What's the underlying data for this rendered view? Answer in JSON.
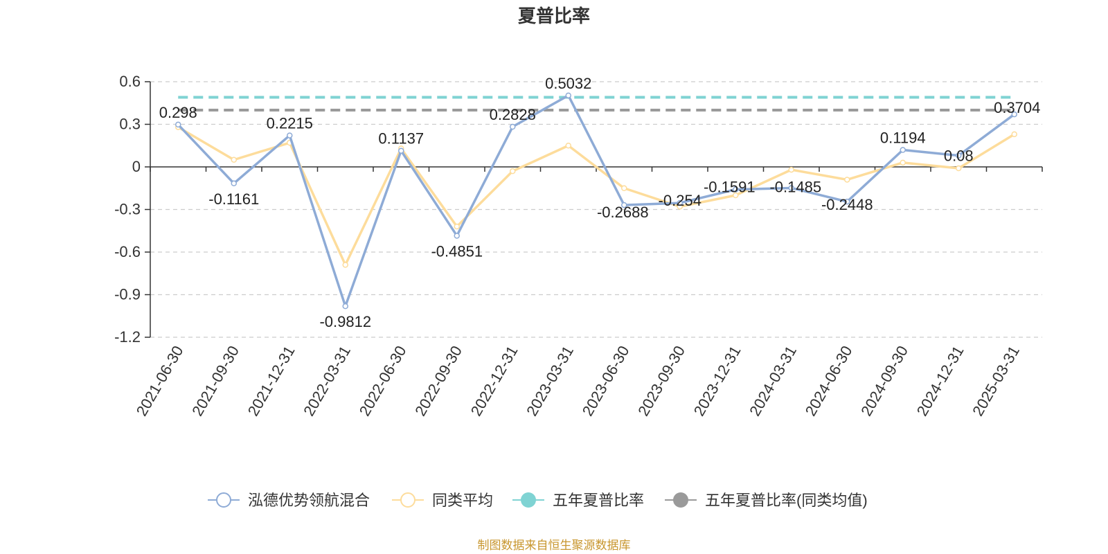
{
  "chart_data": {
    "type": "line",
    "title": "夏普比率",
    "x": [
      "2021-06-30",
      "2021-09-30",
      "2021-12-31",
      "2022-03-31",
      "2022-06-30",
      "2022-09-30",
      "2022-12-31",
      "2023-03-31",
      "2023-06-30",
      "2023-09-30",
      "2023-12-31",
      "2024-03-31",
      "2024-06-30",
      "2024-09-30",
      "2024-12-31",
      "2025-03-31"
    ],
    "ylim": [
      -1.2,
      0.6
    ],
    "yticks": [
      "0.6",
      "0.3",
      "0",
      "-0.3",
      "-0.6",
      "-0.9",
      "-1.2"
    ],
    "grid": true,
    "legend_position": "bottom",
    "series": [
      {
        "name": "泓德优势领航混合",
        "color": "#8eabd6",
        "values": [
          0.298,
          -0.1161,
          0.2215,
          -0.9812,
          0.1137,
          -0.4851,
          0.2828,
          0.5032,
          -0.2688,
          -0.254,
          -0.1591,
          -0.1485,
          -0.2448,
          0.1194,
          0.08,
          0.3704
        ],
        "labels": [
          "0.298",
          "-0.1161",
          "0.2215",
          "-0.9812",
          "0.1137",
          "-0.4851",
          "0.2828",
          "0.5032",
          "-0.2688",
          "-0.254",
          "-0.1591",
          "-0.1485",
          "-0.2448",
          "0.1194",
          "0.08",
          "0.3704"
        ]
      },
      {
        "name": "同类平均",
        "color": "#fddc9b",
        "values": [
          0.28,
          0.05,
          0.17,
          -0.69,
          0.13,
          -0.42,
          -0.03,
          0.15,
          -0.15,
          -0.28,
          -0.2,
          -0.02,
          -0.09,
          0.03,
          -0.01,
          0.23
        ]
      },
      {
        "name": "五年夏普比率",
        "color": "#7fd3d3",
        "constant": 0.49
      },
      {
        "name": "五年夏普比率(同类均值)",
        "color": "#9a9a9a",
        "constant": 0.4
      }
    ]
  },
  "source": "制图数据来自恒生聚源数据库"
}
